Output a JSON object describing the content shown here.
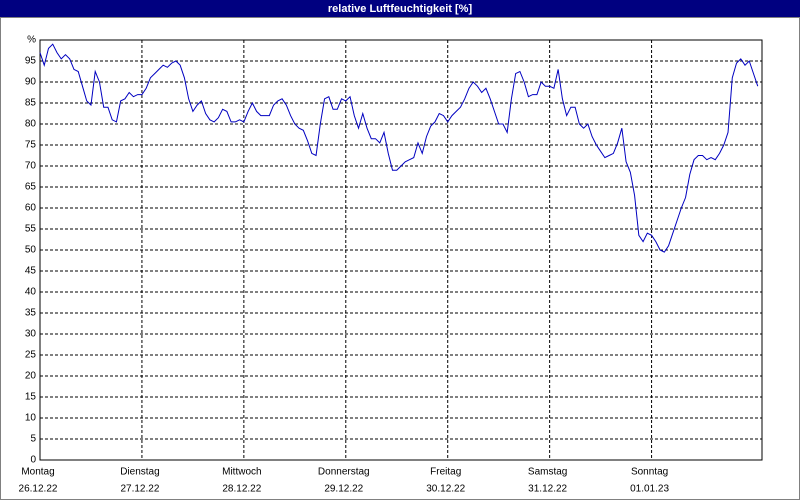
{
  "chart_data": {
    "type": "line",
    "title": "relative Luftfeuchtigkeit [%]",
    "x": [
      0,
      1,
      2,
      3,
      4,
      5,
      6,
      7,
      8,
      9,
      10,
      11,
      12,
      13,
      14,
      15,
      16,
      17,
      18,
      19,
      20,
      21,
      22,
      23,
      24,
      25,
      26,
      27,
      28,
      29,
      30,
      31,
      32,
      33,
      34,
      35,
      36,
      37,
      38,
      39,
      40,
      41,
      42,
      43,
      44,
      45,
      46,
      47,
      48,
      49,
      50,
      51,
      52,
      53,
      54,
      55,
      56,
      57,
      58,
      59,
      60,
      61,
      62,
      63,
      64,
      65,
      66,
      67,
      68,
      69,
      70,
      71,
      72,
      73,
      74,
      75,
      76,
      77,
      78,
      79,
      80,
      81,
      82,
      83,
      84,
      85,
      86,
      87,
      88,
      89,
      90,
      91,
      92,
      93,
      94,
      95,
      96,
      97,
      98,
      99,
      100,
      101,
      102,
      103,
      104,
      105,
      106,
      107,
      108,
      109,
      110,
      111,
      112,
      113,
      114,
      115,
      116,
      117,
      118,
      119,
      120,
      121,
      122,
      123,
      124,
      125,
      126,
      127,
      128,
      129,
      130,
      131,
      132,
      133,
      134,
      135,
      136,
      137,
      138,
      139,
      140,
      141,
      142,
      143,
      144,
      145,
      146,
      147,
      148,
      149,
      150,
      151,
      152,
      153,
      154,
      155,
      156,
      157,
      158,
      159,
      160,
      161,
      162,
      163,
      164,
      165,
      166,
      167,
      168,
      169
    ],
    "series": [
      {
        "name": "relative Luftfeuchtigkeit",
        "color": "#0000c0",
        "values": [
          97,
          94,
          98,
          99,
          97,
          95.5,
          96.5,
          95.5,
          93,
          92.5,
          89,
          85.5,
          84.5,
          92.5,
          90,
          84,
          84,
          81,
          80.5,
          85.5,
          86,
          87.5,
          86.5,
          87,
          87,
          88.5,
          91,
          92,
          93,
          94,
          93.5,
          94.5,
          95,
          94,
          91,
          86,
          83,
          84.5,
          85.5,
          82.5,
          81,
          80.5,
          81.5,
          83.5,
          83,
          80.5,
          80.5,
          81,
          80.5,
          83,
          85,
          83,
          82,
          82,
          82,
          84.5,
          85.5,
          86,
          84.5,
          82,
          80,
          79,
          78.5,
          76,
          73,
          72.5,
          80,
          86,
          86.5,
          83.5,
          83.5,
          86,
          85.5,
          86.5,
          82,
          79,
          82.5,
          79,
          76.5,
          76.5,
          75.5,
          78,
          73,
          69,
          69,
          70,
          71,
          71.5,
          72,
          75.5,
          73,
          77,
          79.5,
          80.5,
          82.5,
          82,
          80.5,
          82,
          83,
          84,
          86,
          88.5,
          90,
          89,
          87.5,
          88.5,
          86,
          83,
          80,
          80,
          78,
          86,
          92,
          92.5,
          90,
          86.5,
          87,
          87,
          90,
          89,
          89,
          88.5,
          93,
          86,
          82,
          84,
          84,
          80,
          79,
          80,
          77,
          75,
          73.5,
          72,
          72.5,
          73,
          75.5,
          79,
          71,
          68.5,
          63,
          53.5,
          52,
          54,
          53.5,
          52,
          50,
          49.5,
          51,
          54,
          57,
          60,
          62.5,
          68,
          71.5,
          72.5,
          72.5,
          71.5,
          72,
          71.5,
          73,
          75,
          78,
          91,
          94.5,
          95.5,
          94,
          95,
          92,
          89
        ]
      }
    ],
    "xlim": [
      0,
      170
    ],
    "xticks": [
      {
        "value": 0,
        "label": "Montag"
      },
      {
        "value": 24,
        "label": "Dienstag"
      },
      {
        "value": 48,
        "label": "Mittwoch"
      },
      {
        "value": 72,
        "label": "Donnerstag"
      },
      {
        "value": 96,
        "label": "Freitag"
      },
      {
        "value": 120,
        "label": "Samstag"
      },
      {
        "value": 144,
        "label": "Sonntag"
      }
    ],
    "xtick_dates": [
      "26.12.22",
      "27.12.22",
      "28.12.22",
      "29.12.22",
      "30.12.22",
      "31.12.22",
      "01.01.23"
    ],
    "ylim": [
      0,
      100
    ],
    "yticks": [
      0,
      5,
      10,
      15,
      20,
      25,
      30,
      35,
      40,
      45,
      50,
      55,
      60,
      65,
      70,
      75,
      80,
      85,
      90,
      95,
      {
        "value": 100,
        "label": "%"
      }
    ],
    "grid": true
  }
}
